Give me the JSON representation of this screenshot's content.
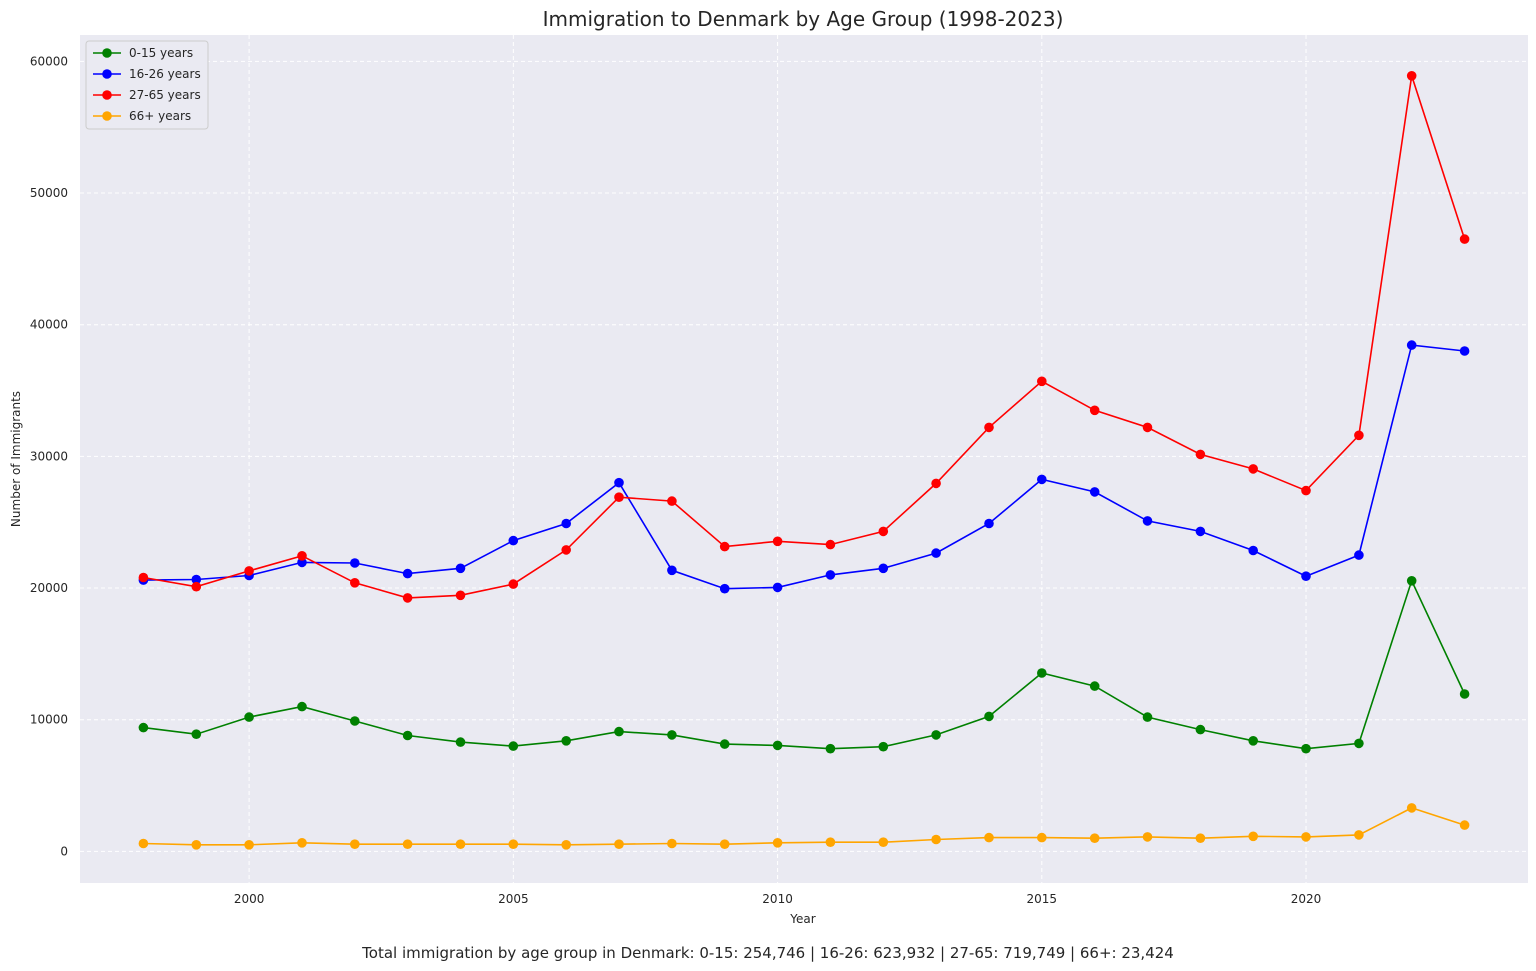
{
  "chart_data": {
    "type": "line",
    "title": "Immigration to Denmark by Age Group (1998-2023)",
    "xlabel": "Year",
    "ylabel": "Number of Immigrants",
    "x": [
      1998,
      1999,
      2000,
      2001,
      2002,
      2003,
      2004,
      2005,
      2006,
      2007,
      2008,
      2009,
      2010,
      2011,
      2012,
      2013,
      2014,
      2015,
      2016,
      2017,
      2018,
      2019,
      2020,
      2021,
      2022,
      2023
    ],
    "xlim": [
      1996.8,
      2024.2
    ],
    "ylim": [
      -2400,
      62000
    ],
    "x_ticks": [
      2000,
      2005,
      2010,
      2015,
      2020
    ],
    "y_ticks": [
      0,
      10000,
      20000,
      30000,
      40000,
      50000,
      60000
    ],
    "grid": true,
    "legend_position": "top-left",
    "series": [
      {
        "name": "0-15 years",
        "color": "#008000",
        "values": [
          9400,
          8900,
          10200,
          11000,
          9900,
          8800,
          8300,
          8000,
          8400,
          9100,
          8850,
          8150,
          8050,
          7800,
          7950,
          8850,
          10250,
          13550,
          12550,
          10200,
          9250,
          8400,
          7800,
          8200,
          20550,
          11950
        ]
      },
      {
        "name": "16-26 years",
        "color": "#0000ff",
        "values": [
          20600,
          20650,
          20950,
          21950,
          21900,
          21100,
          21500,
          23600,
          24900,
          28000,
          21350,
          19950,
          20050,
          21000,
          21500,
          22650,
          24900,
          28250,
          27300,
          25100,
          24300,
          22850,
          20900,
          22500,
          38450,
          38000
        ]
      },
      {
        "name": "27-65 years",
        "color": "#ff0000",
        "values": [
          20800,
          20100,
          21300,
          22450,
          20400,
          19250,
          19450,
          20300,
          22900,
          26900,
          26600,
          23150,
          23550,
          23300,
          24300,
          27950,
          32200,
          35700,
          33500,
          32200,
          30150,
          29050,
          27400,
          31600,
          58900,
          46500
        ]
      },
      {
        "name": "66+ years",
        "color": "#ffa500",
        "values": [
          600,
          500,
          500,
          650,
          550,
          550,
          550,
          550,
          500,
          550,
          600,
          550,
          650,
          700,
          700,
          900,
          1050,
          1050,
          1000,
          1100,
          1000,
          1150,
          1100,
          1250,
          3300,
          2000
        ]
      }
    ],
    "footer_text": "Total immigration by age group in Denmark: 0-15: 254,746 | 16-26: 623,932 | 27-65: 719,749 | 66+: 23,424"
  },
  "colors": {
    "plot_background": "#eaeaf2",
    "grid": "#ffffff"
  }
}
